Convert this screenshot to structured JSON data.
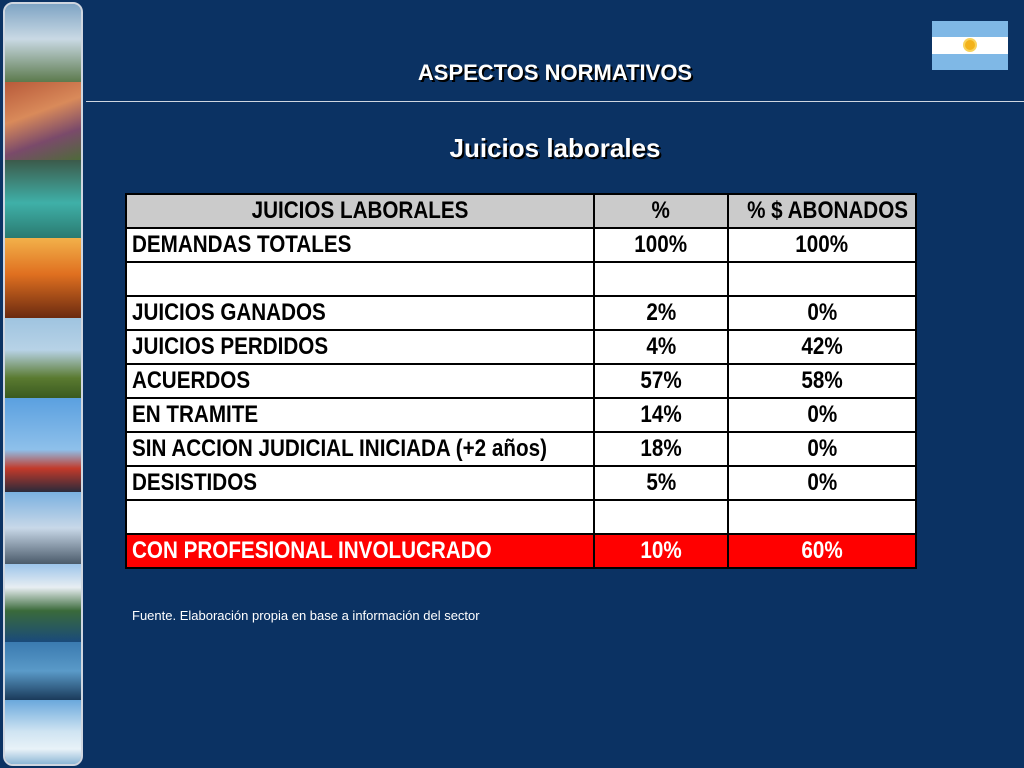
{
  "slide": {
    "header_title": "ASPECTOS NORMATIVOS",
    "subtitle": "Juicios laborales",
    "source_note": "Fuente. Elaboración propia en base a información del sector"
  },
  "colors": {
    "background": "#0b3263",
    "header_row": "#cbcbcb",
    "highlight_row": "#ff0000",
    "text_light": "#ffffff"
  },
  "table": {
    "headers": [
      "JUICIOS LABORALES",
      "%",
      "% $ ABONADOS"
    ],
    "rows": [
      {
        "label": "DEMANDAS TOTALES",
        "pct": "100%",
        "paid": "100%"
      },
      {
        "label": "",
        "pct": "",
        "paid": ""
      },
      {
        "label": "JUICIOS GANADOS",
        "pct": "2%",
        "paid": "0%"
      },
      {
        "label": "JUICIOS PERDIDOS",
        "pct": "4%",
        "paid": "42%"
      },
      {
        "label": "ACUERDOS",
        "pct": "57%",
        "paid": "58%"
      },
      {
        "label": "EN TRAMITE",
        "pct": "14%",
        "paid": "0%"
      },
      {
        "label": "SIN ACCION JUDICIAL INICIADA (+2 años)",
        "pct": "18%",
        "paid": "0%"
      },
      {
        "label": "DESISTIDOS",
        "pct": "5%",
        "paid": "0%"
      },
      {
        "label": "",
        "pct": "",
        "paid": ""
      },
      {
        "label": "CON PROFESIONAL INVOLUCRADO",
        "pct": "10%",
        "paid": "60%"
      }
    ]
  }
}
